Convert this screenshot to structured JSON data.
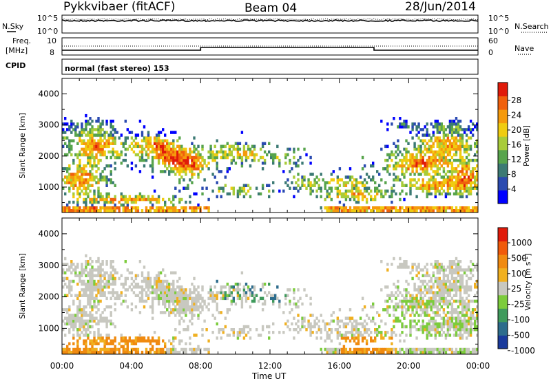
{
  "header": {
    "station": "Pykkvibaer (fitACF)",
    "beam": "Beam 04",
    "date": "28/Jun/2014"
  },
  "noise_panel": {
    "left_label": "N.Sky",
    "left_ticks": [
      "10^5",
      "10^0"
    ],
    "right_label": "N.Search",
    "right_ticks": [
      "10^5",
      "10^0"
    ]
  },
  "freq_panel": {
    "left_label_line1": "Freq.",
    "left_label_line2": "[MHz]",
    "left_ticks": [
      "10",
      "8"
    ],
    "right_label": "Nave",
    "right_ticks": [
      "60",
      "0"
    ]
  },
  "cpid_panel": {
    "label": "CPID",
    "mode_text": "normal (fast stereo) 153"
  },
  "time_axis": {
    "label": "Time UT",
    "ticks": [
      "00:00",
      "04:00",
      "08:00",
      "12:00",
      "16:00",
      "20:00",
      "00:00"
    ]
  },
  "chart_data": [
    {
      "type": "heatmap",
      "title": "",
      "ylabel": "Slant Range [km]",
      "xlabel": "Time UT",
      "xlim_hours": [
        0,
        24
      ],
      "ylim_km": [
        180,
        4500
      ],
      "y_ticks": [
        "4000",
        "3000",
        "2000",
        "1000"
      ],
      "y_tick_values": [
        4000,
        3000,
        2000,
        1000
      ],
      "colorbar": {
        "label": "Power [dB]",
        "tick_labels": [
          "28",
          "24",
          "20",
          "16",
          "12",
          "8",
          "4"
        ],
        "range": [
          0,
          30
        ],
        "colors": [
          "#0000ff",
          "#2a4ab0",
          "#3c7a74",
          "#57a44c",
          "#a8cc3a",
          "#f0cc10",
          "#f59a0c",
          "#f0600c",
          "#e01a0a"
        ]
      }
    },
    {
      "type": "heatmap",
      "title": "",
      "ylabel": "Slant Range [km]",
      "xlabel": "Time UT",
      "xlim_hours": [
        0,
        24
      ],
      "ylim_km": [
        180,
        4500
      ],
      "y_ticks": [
        "4000",
        "3000",
        "2000",
        "1000"
      ],
      "y_tick_values": [
        4000,
        3000,
        2000,
        1000
      ],
      "colorbar": {
        "label_main": "Velocity",
        "label_units": "[m s",
        "label_exp": "-1",
        "label_close": "]",
        "tick_labels": [
          "1000",
          "500",
          "100",
          "25",
          "-25",
          "-100",
          "-500",
          "-1000"
        ],
        "range": [
          -1250,
          1250
        ],
        "colors": [
          "#1a3a9c",
          "#2d6c8c",
          "#3f9a5c",
          "#7ccc3c",
          "#c8c8c0",
          "#f0b020",
          "#f08a10",
          "#f05a0a",
          "#e01a0a"
        ]
      }
    }
  ]
}
